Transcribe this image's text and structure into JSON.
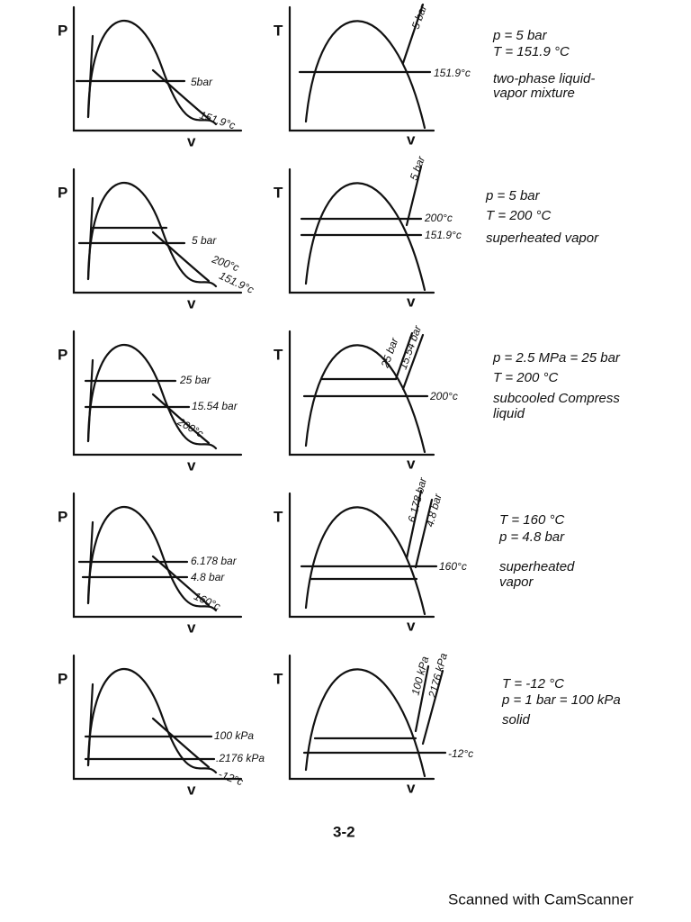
{
  "rows": [
    {
      "pv": {
        "y_axis": "P",
        "x_axis": "v",
        "labels": [
          "5bar",
          "151.9°c"
        ]
      },
      "tv": {
        "y_axis": "T",
        "x_axis": "v",
        "labels": [
          "151.9°c",
          "5 bar"
        ]
      },
      "notes": [
        "p = 5 bar",
        "T = 151.9 °C",
        "two-phase liquid-",
        "vapor mixture"
      ]
    },
    {
      "pv": {
        "y_axis": "P",
        "x_axis": "v",
        "labels": [
          "5 bar",
          "200°c",
          "151.9°c"
        ]
      },
      "tv": {
        "y_axis": "T",
        "x_axis": "v",
        "labels": [
          "200°c",
          "151.9°c",
          "5 bar"
        ]
      },
      "notes": [
        "p = 5 bar",
        "T = 200 °C",
        "superheated vapor"
      ]
    },
    {
      "pv": {
        "y_axis": "P",
        "x_axis": "v",
        "labels": [
          "25 bar",
          "15.54 bar",
          "200°c"
        ]
      },
      "tv": {
        "y_axis": "T",
        "x_axis": "v",
        "labels": [
          "200°c",
          "25 bar",
          "15.54 bar"
        ]
      },
      "notes": [
        "p = 2.5 MPa = 25 bar",
        "T = 200 °C",
        "subcooled Compress",
        "liquid"
      ]
    },
    {
      "pv": {
        "y_axis": "P",
        "x_axis": "v",
        "labels": [
          "6.178 bar",
          "4.8 bar",
          "160°c"
        ]
      },
      "tv": {
        "y_axis": "T",
        "x_axis": "v",
        "labels": [
          "160°c",
          "6.178 bar",
          "4.8 bar"
        ]
      },
      "notes": [
        "T = 160 °C",
        "p = 4.8 bar",
        "superheated",
        "vapor"
      ]
    },
    {
      "pv": {
        "y_axis": "P",
        "x_axis": "v",
        "labels": [
          "100 kPa",
          ".2176 kPa",
          "-12°c"
        ]
      },
      "tv": {
        "y_axis": "T",
        "x_axis": "v",
        "labels": [
          "-12°c",
          "100 kPa",
          ".2176 kPa"
        ]
      },
      "notes": [
        "T = -12 °C",
        "p = 1 bar = 100 kPa",
        "solid"
      ]
    }
  ],
  "page_number": "3-2",
  "footer": "Scanned with CamScanner"
}
